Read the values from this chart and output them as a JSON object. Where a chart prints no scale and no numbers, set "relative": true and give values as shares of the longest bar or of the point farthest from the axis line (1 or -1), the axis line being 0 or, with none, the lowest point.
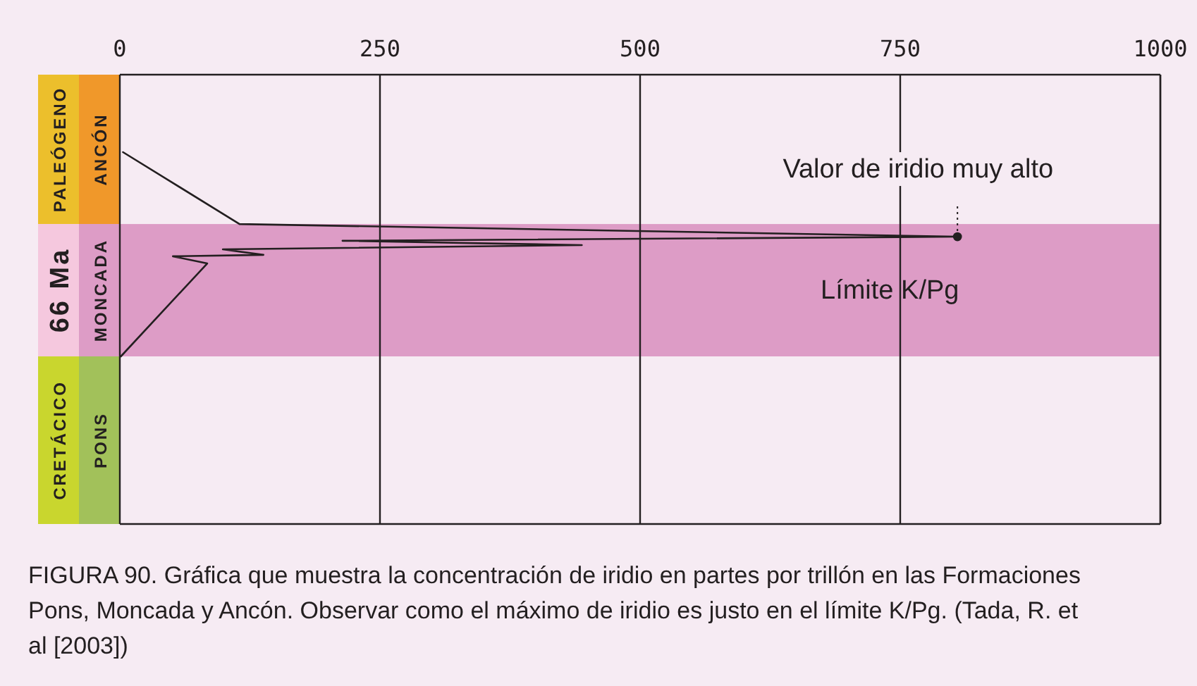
{
  "chart_data": {
    "type": "line",
    "relative": true,
    "series": [
      {
        "color": "#231f20",
        "x": [
          3,
          115,
          805,
          214,
          444,
          99,
          138,
          51,
          84,
          1
        ],
        "values": [
          1,
          0.648,
          0.586,
          0.566,
          0.545,
          0.524,
          0.497,
          0.49,
          0.455,
          0
        ]
      }
    ],
    "xlim": [
      0,
      1000
    ],
    "xticks": [
      0,
      250,
      500,
      750,
      1000
    ],
    "grid": "x",
    "bands": [
      {
        "axis": "y",
        "from": 0,
        "to": 0.648,
        "label": "Límite K/Pg",
        "color": "#dd9cc6"
      }
    ],
    "annotations": [
      {
        "text": "Valor de iridio muy alto",
        "x": 805,
        "y": 0.586
      },
      "PALEÓGENO",
      "66 Ma",
      "CRETÁCICO",
      "ANCÓN",
      "MONCADA",
      "PONS",
      "FIGURA 90. Gráfica que muestra la concentración de iridio en partes por trillón en las Formaciones Pons, Moncada y Ancón. Observar como el máximo de iridio es justo en el límite K/Pg. (Tada, R. et al [2003])"
    ]
  }
}
